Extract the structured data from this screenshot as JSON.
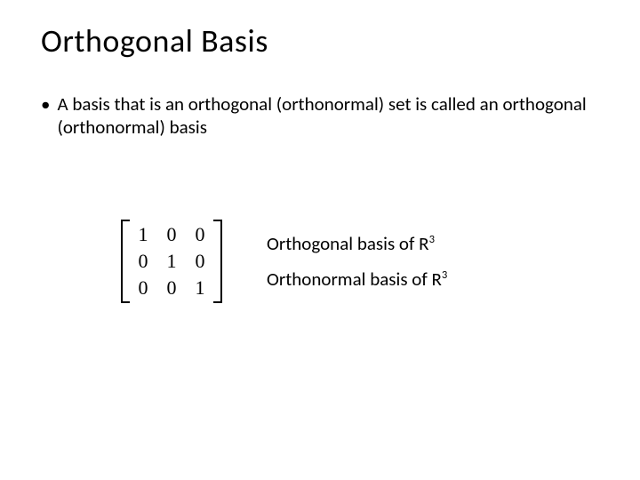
{
  "title": "Orthogonal Basis",
  "bullet": {
    "marker": "•",
    "text": "A basis that is an orthogonal (orthonormal) set is called an orthogonal (orthonormal) basis"
  },
  "matrix": {
    "rows": 3,
    "cols": 3,
    "cells": [
      "1",
      "0",
      "0",
      "0",
      "1",
      "0",
      "0",
      "0",
      "1"
    ],
    "fontsize": 22,
    "bracket_color": "#000000"
  },
  "labels": {
    "line1_prefix": "Orthogonal basis of R",
    "line1_super": "3",
    "line2_prefix": "Orthonormal basis of R",
    "line2_super": "3"
  },
  "style": {
    "bg": "#ffffff",
    "text_color": "#000000",
    "title_fontsize": 36,
    "body_fontsize": 21
  }
}
